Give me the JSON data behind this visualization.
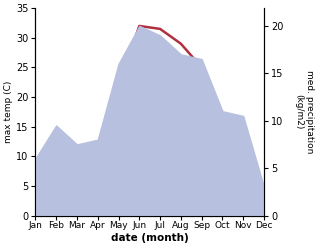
{
  "months": [
    "Jan",
    "Feb",
    "Mar",
    "Apr",
    "May",
    "Jun",
    "Jul",
    "Aug",
    "Sep",
    "Oct",
    "Nov",
    "Dec"
  ],
  "temp": [
    0.5,
    2.0,
    5.0,
    7.0,
    22.0,
    32.0,
    31.5,
    29.0,
    25.0,
    14.0,
    5.0,
    1.0
  ],
  "precip": [
    6.0,
    9.5,
    7.5,
    8.0,
    16.0,
    20.0,
    19.0,
    17.0,
    16.5,
    11.0,
    10.5,
    3.0
  ],
  "temp_color": "#b03040",
  "precip_fill_color": "#b8c0e0",
  "temp_ylim": [
    0,
    35
  ],
  "precip_ylim": [
    0,
    21.875
  ],
  "temp_yticks": [
    0,
    5,
    10,
    15,
    20,
    25,
    30,
    35
  ],
  "precip_yticks": [
    0,
    5,
    10,
    15,
    20
  ],
  "ylabel_left": "max temp (C)",
  "ylabel_right": "med. precipitation\n(kg/m2)",
  "xlabel": "date (month)",
  "bg_color": "#ffffff",
  "line_width": 1.8
}
